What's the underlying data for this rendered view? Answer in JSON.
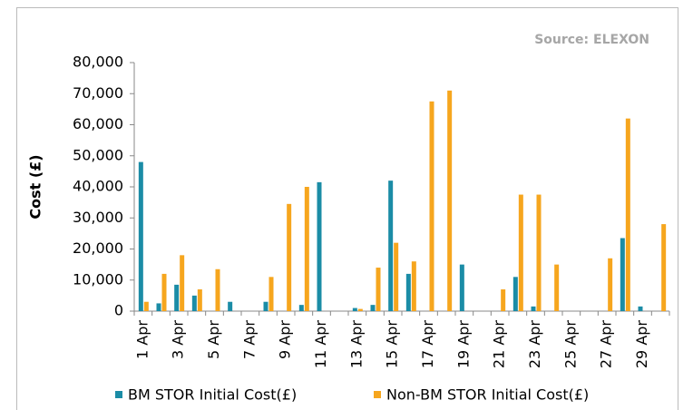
{
  "chart_data": {
    "type": "bar",
    "source": "Source: ELEXON",
    "y_label": "Cost (£)",
    "categories": [
      "1 Apr",
      null,
      "3 Apr",
      null,
      "5 Apr",
      null,
      "7 Apr",
      null,
      "9 Apr",
      null,
      "11 Apr",
      null,
      "13 Apr",
      null,
      "15 Apr",
      null,
      "17 Apr",
      null,
      "19 Apr",
      null,
      "21 Apr",
      null,
      "23 Apr",
      null,
      "25 Apr",
      null,
      "27 Apr",
      null,
      "29 Apr",
      null
    ],
    "series": [
      {
        "name": "BM STOR Initial Cost(£)",
        "color": "#1b8ca6",
        "values": [
          48000,
          2500,
          8500,
          5000,
          0,
          3000,
          0,
          3000,
          0,
          2000,
          41500,
          0,
          1000,
          2000,
          42000,
          12000,
          0,
          0,
          15000,
          0,
          0,
          11000,
          1500,
          0,
          0,
          0,
          0,
          23500,
          1500,
          0
        ]
      },
      {
        "name": "Non-BM STOR Initial Cost(£)",
        "color": "#f6a61e",
        "values": [
          3000,
          12000,
          18000,
          7000,
          13500,
          0,
          0,
          11000,
          34500,
          40000,
          0,
          0,
          700,
          14000,
          22000,
          16000,
          67500,
          71000,
          0,
          0,
          7000,
          37500,
          37500,
          15000,
          0,
          0,
          17000,
          62000,
          0,
          28000
        ]
      }
    ],
    "ylim": [
      0,
      80000
    ],
    "yticks": [
      0,
      {
        "value": 10000,
        "label": "10,000"
      },
      {
        "value": 20000,
        "label": "20,000"
      },
      {
        "value": 30000,
        "label": "30,000"
      },
      {
        "value": 40000,
        "label": "40,000"
      },
      {
        "value": 50000,
        "label": "50,000"
      },
      {
        "value": 60000,
        "label": "60,000"
      },
      {
        "value": 70000,
        "label": "70,000"
      },
      {
        "value": 80000,
        "label": "80,000"
      }
    ],
    "grid": false
  }
}
